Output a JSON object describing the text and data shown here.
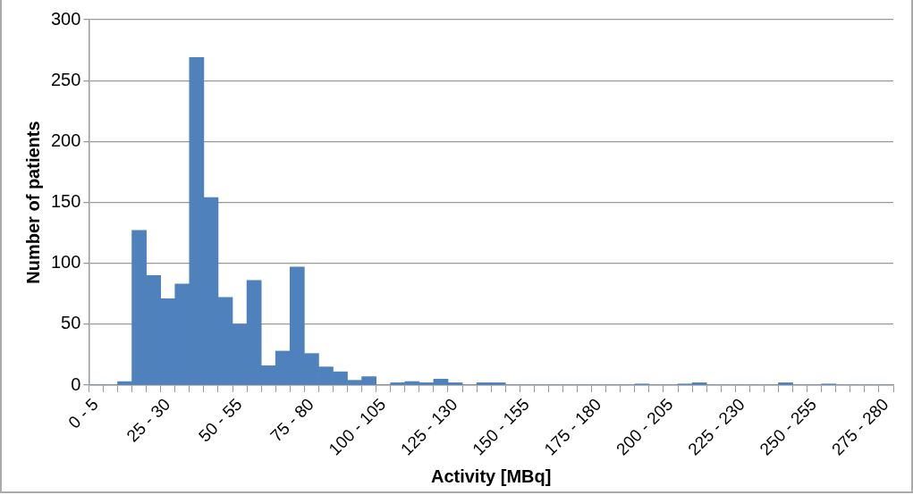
{
  "chart_data": {
    "type": "bar",
    "xlabel": "Activity [MBq]",
    "ylabel": "Number of patients",
    "categories": [
      "0 - 5",
      null,
      null,
      null,
      null,
      "25 - 30",
      null,
      null,
      null,
      null,
      "50 - 55",
      null,
      null,
      null,
      null,
      "75 - 80",
      null,
      null,
      null,
      null,
      "100 - 105",
      null,
      null,
      null,
      null,
      "125 - 130",
      null,
      null,
      null,
      null,
      "150 - 155",
      null,
      null,
      null,
      null,
      "175 - 180",
      null,
      null,
      null,
      null,
      "200 - 205",
      null,
      null,
      null,
      null,
      "225 - 230",
      null,
      null,
      null,
      null,
      "250 - 255",
      null,
      null,
      null,
      null,
      "275 - 280"
    ],
    "values": [
      0,
      0,
      3,
      127,
      90,
      71,
      83,
      269,
      154,
      72,
      50,
      86,
      16,
      28,
      97,
      26,
      15,
      11,
      4,
      7,
      0,
      2,
      3,
      2,
      5,
      2,
      0,
      2,
      2,
      0,
      0,
      0,
      0,
      0,
      0,
      0,
      0,
      0,
      1,
      0,
      0,
      1,
      2,
      0,
      0,
      0,
      0,
      0,
      2,
      0,
      0,
      1,
      0,
      0,
      0,
      0
    ],
    "color": "#4f81bd",
    "ylim": [
      0,
      300
    ],
    "yticks": [
      0,
      50,
      100,
      150,
      200,
      250,
      300
    ],
    "grid": "y",
    "legend": false
  }
}
